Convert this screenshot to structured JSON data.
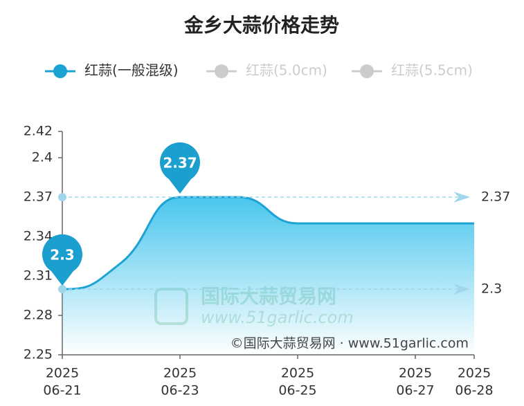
{
  "chart_data": {
    "type": "line",
    "title": "金乡大蒜价格走势",
    "x": [
      "2025-06-21",
      "2025-06-22",
      "2025-06-23",
      "2025-06-24",
      "2025-06-25",
      "2025-06-26",
      "2025-06-27",
      "2025-06-28"
    ],
    "series": [
      {
        "name": "红蒜(一般混级)",
        "color": "#1ba3d3",
        "values": [
          2.3,
          2.32,
          2.37,
          2.37,
          2.35,
          2.35,
          2.35,
          2.35
        ]
      },
      {
        "name": "红蒜(5.0cm)",
        "color": "#cccccc",
        "hidden": true,
        "values": [
          null,
          null,
          null,
          null,
          null,
          null,
          null,
          null
        ]
      },
      {
        "name": "红蒜(5.5cm)",
        "color": "#cccccc",
        "hidden": true,
        "values": [
          null,
          null,
          null,
          null,
          null,
          null,
          null,
          null
        ]
      }
    ],
    "ylim": [
      2.25,
      2.42
    ],
    "yticks": [
      2.25,
      2.28,
      2.31,
      2.34,
      2.37,
      2.4,
      2.42
    ],
    "xticks": [
      {
        "value": "2025-06-21",
        "label": [
          "2025",
          "06-21"
        ]
      },
      {
        "value": "2025-06-23",
        "label": [
          "2025",
          "06-23"
        ]
      },
      {
        "value": "2025-06-25",
        "label": [
          "2025",
          "06-25"
        ]
      },
      {
        "value": "2025-06-27",
        "label": [
          "2025",
          "06-27"
        ]
      },
      {
        "value": "2025-06-28",
        "label": [
          "2025",
          "06-28"
        ]
      }
    ],
    "mark_points": [
      {
        "x": "2025-06-23",
        "value": 2.37
      },
      {
        "x": "2025-06-21",
        "value": 2.3
      }
    ],
    "mark_lines": [
      2.37,
      2.3
    ],
    "watermark_logo": [
      "国际大蒜贸易网",
      "www.51garlic.com"
    ],
    "watermark": "©国际大蒜贸易网 · www.51garlic.com"
  }
}
